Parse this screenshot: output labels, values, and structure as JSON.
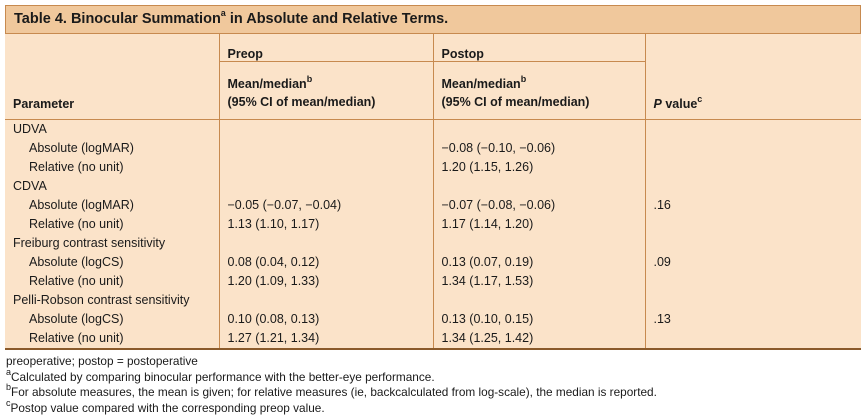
{
  "table": {
    "title": "Table 4.  Binocular Summation",
    "title_sup": "a",
    "title_rest": " in Absolute and Relative Terms.",
    "header": {
      "preop": "Preop",
      "postop": "Postop",
      "parameter": "Parameter",
      "mean_label": "Mean/median",
      "mean_sup": "b",
      "ci_label": "(95% CI of mean/median)",
      "p_label": "P",
      "p_rest": " value",
      "p_sup": "c"
    },
    "rows": [
      {
        "param": "UDVA",
        "indent": false,
        "preop": "",
        "postop": "",
        "p": ""
      },
      {
        "param": "Absolute (logMAR)",
        "indent": true,
        "preop": "",
        "postop": "−0.08 (−0.10, −0.06)",
        "p": ""
      },
      {
        "param": "Relative (no unit)",
        "indent": true,
        "preop": "",
        "postop": "1.20 (1.15, 1.26)",
        "p": ""
      },
      {
        "param": "CDVA",
        "indent": false,
        "preop": "",
        "postop": "",
        "p": ""
      },
      {
        "param": "Absolute (logMAR)",
        "indent": true,
        "preop": "−0.05 (−0.07, −0.04)",
        "postop": "−0.07 (−0.08, −0.06)",
        "p": ".16"
      },
      {
        "param": "Relative (no unit)",
        "indent": true,
        "preop": "1.13 (1.10, 1.17)",
        "postop": "1.17 (1.14, 1.20)",
        "p": ""
      },
      {
        "param": "Freiburg contrast sensitivity",
        "indent": false,
        "preop": "",
        "postop": "",
        "p": ""
      },
      {
        "param": "Absolute (logCS)",
        "indent": true,
        "preop": "0.08 (0.04, 0.12)",
        "postop": "0.13 (0.07, 0.19)",
        "p": ".09"
      },
      {
        "param": "Relative (no unit)",
        "indent": true,
        "preop": "1.20 (1.09, 1.33)",
        "postop": "1.34 (1.17, 1.53)",
        "p": ""
      },
      {
        "param": "Pelli-Robson contrast sensitivity",
        "indent": false,
        "preop": "",
        "postop": "",
        "p": ""
      },
      {
        "param": "Absolute (logCS)",
        "indent": true,
        "preop": "0.10 (0.08, 0.13)",
        "postop": "0.13 (0.10, 0.15)",
        "p": ".13"
      },
      {
        "param": "Relative (no unit)",
        "indent": true,
        "preop": "1.27 (1.21, 1.34)",
        "postop": "1.34 (1.25, 1.42)",
        "p": ""
      }
    ]
  },
  "footnotes": {
    "abbrev": "preoperative; postop = postoperative",
    "a_mark": "a",
    "a_text": "Calculated by comparing binocular performance with the better-eye performance.",
    "b_mark": "b",
    "b_text": "For absolute measures, the mean is given; for relative measures (ie, backcalculated from log-scale), the median is reported.",
    "c_mark": "c",
    "c_text": "Postop value compared with the corresponding preop value."
  },
  "colors": {
    "title_bg": "#f0c89c",
    "table_bg": "#fbe3c9",
    "border": "#c78a4f"
  }
}
